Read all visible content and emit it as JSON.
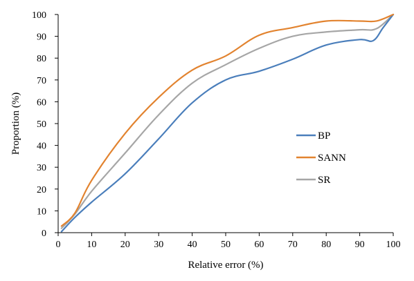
{
  "chart_data": {
    "type": "line",
    "xlabel": "Relative error (%)",
    "ylabel": "Proportion (%)",
    "xlim": [
      0,
      100
    ],
    "ylim": [
      0,
      100
    ],
    "x_ticks": [
      0,
      10,
      20,
      30,
      40,
      50,
      60,
      70,
      80,
      90,
      100
    ],
    "y_ticks": [
      0,
      10,
      20,
      30,
      40,
      50,
      60,
      70,
      80,
      90,
      100
    ],
    "grid": false,
    "legend_position": "right",
    "series": [
      {
        "name": "BP",
        "color": "#4a7ebb",
        "points": [
          [
            1,
            0.5
          ],
          [
            5,
            7
          ],
          [
            10,
            14
          ],
          [
            20,
            27
          ],
          [
            30,
            43
          ],
          [
            40,
            59.5
          ],
          [
            50,
            70
          ],
          [
            60,
            74
          ],
          [
            70,
            79.5
          ],
          [
            80,
            86
          ],
          [
            90,
            88.5
          ],
          [
            94,
            88
          ],
          [
            97,
            94
          ],
          [
            100,
            100
          ]
        ]
      },
      {
        "name": "SANN",
        "color": "#e2832f",
        "points": [
          [
            1,
            3
          ],
          [
            5,
            9
          ],
          [
            10,
            24
          ],
          [
            20,
            45.5
          ],
          [
            30,
            62
          ],
          [
            40,
            74.5
          ],
          [
            50,
            81
          ],
          [
            60,
            90.5
          ],
          [
            70,
            94
          ],
          [
            80,
            97
          ],
          [
            90,
            97
          ],
          [
            95,
            97
          ],
          [
            100,
            100
          ]
        ]
      },
      {
        "name": "SR",
        "color": "#a6a6a6",
        "points": [
          [
            1,
            2
          ],
          [
            5,
            8.5
          ],
          [
            10,
            19
          ],
          [
            20,
            36.5
          ],
          [
            30,
            54
          ],
          [
            40,
            68.5
          ],
          [
            50,
            77
          ],
          [
            60,
            84.5
          ],
          [
            70,
            90
          ],
          [
            80,
            92
          ],
          [
            90,
            93
          ],
          [
            95,
            93.5
          ],
          [
            100,
            100
          ]
        ]
      }
    ]
  }
}
